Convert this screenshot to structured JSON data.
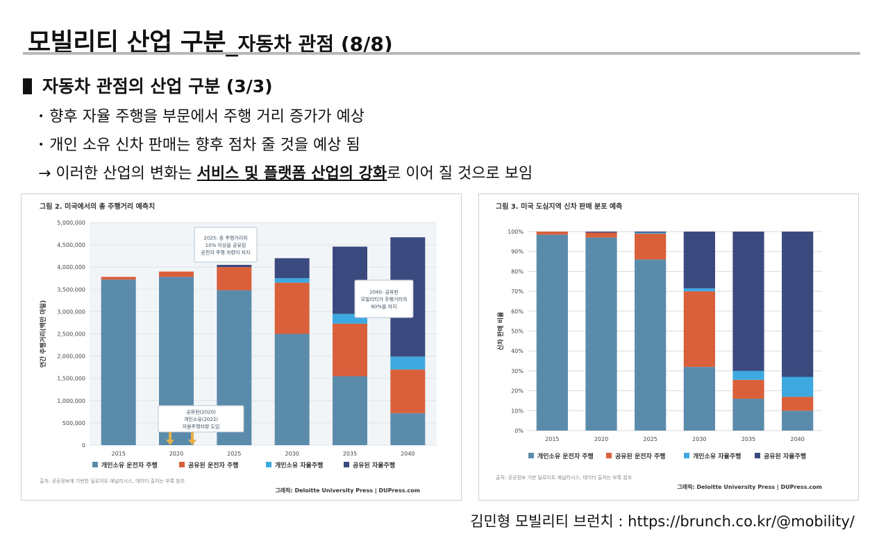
{
  "title": {
    "main": "모빌리티 산업 구분_",
    "sub": "자동차 관점 (8/8)"
  },
  "section_heading": "자동차 관점의 산업 구분 (3/3)",
  "bullets": [
    "향후 자율 주행을 부문에서 주행 거리 증가가 예상",
    "개인 소유 신차 판매는 향후 점차 줄 것을 예상 됨"
  ],
  "conclusion": {
    "prefix": "→ 이러한 산업의 변화는 ",
    "emphasis": "서비스 및 플랫폼 산업의 강화",
    "suffix": "로 이어 질 것으로 보임"
  },
  "colors": {
    "personal_driver": "#5b8bab",
    "shared_driver": "#d9603b",
    "personal_auto": "#3ea9e0",
    "shared_auto": "#3b4a7e"
  },
  "chart_data": [
    {
      "type": "bar",
      "stacked": true,
      "title": "그림 2. 미국에서의 총 주행거리 예측치",
      "ylabel": "연간 주행거리(백만 마일)",
      "categories": [
        "2015",
        "2020",
        "2025",
        "2030",
        "2035",
        "2040"
      ],
      "ylim": [
        0,
        5000000
      ],
      "yticks": [
        "0",
        "500,000",
        "1,000,000",
        "1,500,000",
        "2,000,000",
        "2,500,000",
        "3,000,000",
        "3,500,000",
        "4,000,000",
        "4,500,000",
        "5,000,000"
      ],
      "series": [
        {
          "name": "개인소유 운전자 주행",
          "values": [
            3720000,
            3780000,
            3480000,
            2500000,
            1550000,
            720000
          ]
        },
        {
          "name": "공유된 운전자 주행",
          "values": [
            60000,
            120000,
            520000,
            1150000,
            1180000,
            980000
          ]
        },
        {
          "name": "개인소유 자율주행",
          "values": [
            0,
            0,
            0,
            100000,
            220000,
            290000
          ]
        },
        {
          "name": "공유된 자율주행",
          "values": [
            0,
            0,
            50000,
            450000,
            1510000,
            2680000
          ]
        }
      ],
      "annotations": [
        {
          "lines": [
            "2025: 총 주행거리의",
            "10% 이상을 공유된",
            "운전자 주행 차량이 차지"
          ]
        },
        {
          "lines": [
            "2040: 공유된",
            "모빌리티가 주행거리의",
            "80%를 차지"
          ]
        },
        {
          "lines": [
            "공유된(2020)",
            "개인소유(2022)",
            "자율주행차량 도입"
          ]
        }
      ],
      "source": "출처: 공공정보에 기반한 딜로이트 애널리시스, 데이터 출처는 부록 참조",
      "graphic_credit": "그래픽: Deloitte University Press | DUPress.com"
    },
    {
      "type": "bar",
      "stacked": true,
      "title": "그림 3. 미국 도심지역 신차 판매 분포 예측",
      "ylabel": "신차 판매 비율",
      "categories": [
        "2015",
        "2020",
        "2025",
        "2030",
        "2035",
        "2040"
      ],
      "ylim": [
        0,
        100
      ],
      "yticks": [
        "0%",
        "10%",
        "20%",
        "30%",
        "40%",
        "50%",
        "60%",
        "70%",
        "80%",
        "90%",
        "100%"
      ],
      "series": [
        {
          "name": "개인소유 운전자 주행",
          "values": [
            98.5,
            97,
            86,
            32,
            16,
            10
          ]
        },
        {
          "name": "공유된 운전자 주행",
          "values": [
            1.5,
            2.5,
            13,
            38,
            9.5,
            7
          ]
        },
        {
          "name": "개인소유 자율주행",
          "values": [
            0,
            0,
            0.5,
            1.5,
            4.5,
            10
          ]
        },
        {
          "name": "공유된 자율주행",
          "values": [
            0,
            0.5,
            0.5,
            28.5,
            70,
            73
          ]
        }
      ],
      "source": "출처: 공공정보 기반 딜로이트 애널리시스, 데이터 출처는 부록 참조",
      "graphic_credit": "그래픽: Deloitte University Press | DUPress.com"
    }
  ],
  "footer_credit": "김민형 모빌리티 브런치 : https://brunch.co.kr/@mobility/"
}
